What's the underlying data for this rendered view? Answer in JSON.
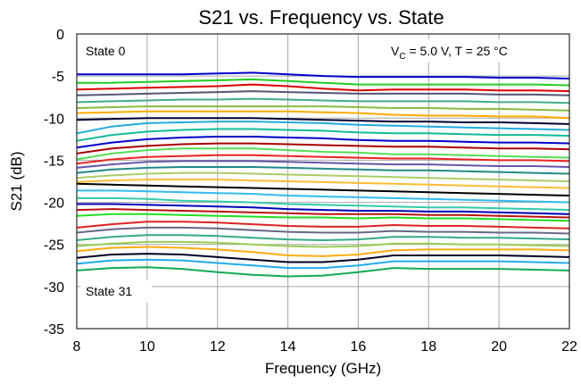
{
  "chart_data": {
    "type": "line",
    "title": "S21 vs. Frequency vs. State",
    "xlabel": "Frequency (GHz)",
    "ylabel": "S21 (dB)",
    "xlim": [
      8,
      22
    ],
    "ylim": [
      -35,
      0
    ],
    "xticks": [
      "8",
      "10",
      "12",
      "14",
      "16",
      "18",
      "20",
      "22"
    ],
    "yticks": [
      "0",
      "-5",
      "-10",
      "-15",
      "-20",
      "-25",
      "-30",
      "-35"
    ],
    "grid": true,
    "annotations": {
      "top_left": "State 0",
      "bottom_left": "State 31",
      "conditions_pre": "V",
      "conditions_sub": "C",
      "conditions_post": " = 5.0 V, T = 25 °C"
    },
    "x": [
      8,
      9,
      10,
      11,
      12,
      13,
      14,
      15,
      16,
      17,
      18,
      19,
      20,
      21,
      22
    ],
    "series": [
      {
        "color": "#0000cc",
        "values": [
          -4.8,
          -4.8,
          -4.8,
          -4.8,
          -4.7,
          -4.6,
          -4.8,
          -5.0,
          -5.1,
          -5.1,
          -5.1,
          -5.1,
          -5.2,
          -5.2,
          -5.3
        ]
      },
      {
        "color": "#22cc22",
        "values": [
          -5.8,
          -5.8,
          -5.7,
          -5.6,
          -5.5,
          -5.4,
          -5.6,
          -5.8,
          -6.0,
          -6.0,
          -6.0,
          -6.0,
          -6.0,
          -6.0,
          -6.1
        ]
      },
      {
        "color": "#dd0000",
        "values": [
          -6.6,
          -6.5,
          -6.4,
          -6.3,
          -6.2,
          -6.0,
          -6.2,
          -6.5,
          -6.7,
          -6.6,
          -6.6,
          -6.6,
          -6.7,
          -6.7,
          -6.8
        ]
      },
      {
        "color": "#555577",
        "values": [
          -7.3,
          -7.2,
          -7.1,
          -7.0,
          -6.9,
          -6.8,
          -6.9,
          -7.0,
          -7.1,
          -7.1,
          -7.1,
          -7.1,
          -7.2,
          -7.2,
          -7.3
        ]
      },
      {
        "color": "#44aa88",
        "values": [
          -8.1,
          -8.0,
          -7.9,
          -7.8,
          -7.8,
          -7.7,
          -7.8,
          -7.9,
          -8.0,
          -8.0,
          -8.0,
          -8.0,
          -8.1,
          -8.1,
          -8.2
        ]
      },
      {
        "color": "#88bb44",
        "values": [
          -8.8,
          -8.7,
          -8.6,
          -8.6,
          -8.6,
          -8.6,
          -8.6,
          -8.6,
          -8.7,
          -8.8,
          -8.8,
          -8.9,
          -8.9,
          -9.0,
          -9.1
        ]
      },
      {
        "color": "#ffaa00",
        "values": [
          -9.4,
          -9.3,
          -9.2,
          -9.2,
          -9.2,
          -9.2,
          -9.2,
          -9.3,
          -9.4,
          -9.6,
          -9.7,
          -9.7,
          -9.8,
          -9.8,
          -10.0
        ]
      },
      {
        "color": "#000033",
        "values": [
          -10.2,
          -10.1,
          -10.0,
          -10.0,
          -10.0,
          -10.0,
          -10.1,
          -10.2,
          -10.3,
          -10.4,
          -10.4,
          -10.5,
          -10.5,
          -10.6,
          -10.7
        ]
      },
      {
        "color": "#22aadd",
        "values": [
          -11.8,
          -11.0,
          -10.6,
          -10.5,
          -10.4,
          -10.4,
          -10.5,
          -10.6,
          -10.8,
          -10.9,
          -11.0,
          -11.1,
          -11.2,
          -11.3,
          -11.4
        ]
      },
      {
        "color": "#11bb99",
        "values": [
          -12.7,
          -12.0,
          -11.6,
          -11.4,
          -11.3,
          -11.3,
          -11.4,
          -11.5,
          -11.7,
          -11.8,
          -11.8,
          -11.9,
          -12.0,
          -12.0,
          -12.1
        ]
      },
      {
        "color": "#0000cc",
        "values": [
          -13.5,
          -12.9,
          -12.5,
          -12.3,
          -12.2,
          -12.2,
          -12.3,
          -12.4,
          -12.6,
          -12.7,
          -12.7,
          -12.8,
          -12.9,
          -12.9,
          -13.0
        ]
      },
      {
        "color": "#aa0000",
        "values": [
          -14.2,
          -13.6,
          -13.3,
          -13.1,
          -13.0,
          -13.0,
          -13.1,
          -13.2,
          -13.3,
          -13.4,
          -13.4,
          -13.5,
          -13.6,
          -13.6,
          -13.7
        ]
      },
      {
        "color": "#55dd55",
        "values": [
          -14.9,
          -14.2,
          -13.8,
          -13.6,
          -13.6,
          -13.6,
          -13.8,
          -14.0,
          -14.1,
          -14.3,
          -14.3,
          -14.4,
          -14.5,
          -14.6,
          -14.7
        ]
      },
      {
        "color": "#ee2222",
        "values": [
          -15.4,
          -14.9,
          -14.6,
          -14.5,
          -14.4,
          -14.4,
          -14.5,
          -14.6,
          -14.7,
          -14.8,
          -14.8,
          -14.9,
          -15.0,
          -15.0,
          -15.1
        ]
      },
      {
        "color": "#6655aa",
        "values": [
          -15.9,
          -15.5,
          -15.2,
          -15.1,
          -15.1,
          -15.1,
          -15.2,
          -15.3,
          -15.4,
          -15.5,
          -15.5,
          -15.6,
          -15.7,
          -15.7,
          -15.8
        ]
      },
      {
        "color": "#228888",
        "values": [
          -16.5,
          -16.1,
          -15.9,
          -15.8,
          -15.8,
          -15.8,
          -15.9,
          -16.0,
          -16.1,
          -16.2,
          -16.2,
          -16.3,
          -16.4,
          -16.5,
          -16.6
        ]
      },
      {
        "color": "#aacc66",
        "values": [
          -17.1,
          -16.8,
          -16.6,
          -16.5,
          -16.5,
          -16.6,
          -16.7,
          -16.8,
          -16.9,
          -17.0,
          -17.1,
          -17.2,
          -17.3,
          -17.4,
          -17.5
        ]
      },
      {
        "color": "#ffbb33",
        "values": [
          -17.6,
          -17.4,
          -17.3,
          -17.3,
          -17.3,
          -17.4,
          -17.5,
          -17.6,
          -17.7,
          -17.8,
          -17.9,
          -18.0,
          -18.1,
          -18.2,
          -18.3
        ]
      },
      {
        "color": "#000000",
        "values": [
          -17.8,
          -17.9,
          -18.0,
          -18.1,
          -18.2,
          -18.3,
          -18.4,
          -18.5,
          -18.6,
          -18.7,
          -18.8,
          -18.9,
          -19.0,
          -19.1,
          -19.2
        ]
      },
      {
        "color": "#33bbee",
        "values": [
          -18.6,
          -18.6,
          -18.7,
          -18.8,
          -18.9,
          -19.0,
          -19.2,
          -19.3,
          -19.4,
          -19.5,
          -19.6,
          -19.7,
          -19.8,
          -19.9,
          -20.0
        ]
      },
      {
        "color": "#33ccaa",
        "values": [
          -19.5,
          -19.5,
          -19.6,
          -19.8,
          -19.9,
          -20.0,
          -20.2,
          -20.3,
          -20.4,
          -20.5,
          -20.6,
          -20.6,
          -20.7,
          -20.8,
          -20.9
        ]
      },
      {
        "color": "#0000bb",
        "values": [
          -20.2,
          -20.2,
          -20.3,
          -20.4,
          -20.5,
          -20.6,
          -20.8,
          -20.9,
          -21.0,
          -21.0,
          -21.1,
          -21.1,
          -21.2,
          -21.3,
          -21.4
        ]
      },
      {
        "color": "#bb1111",
        "values": [
          -20.9,
          -20.8,
          -20.9,
          -21.0,
          -21.1,
          -21.2,
          -21.3,
          -21.4,
          -21.4,
          -21.4,
          -21.5,
          -21.5,
          -21.6,
          -21.7,
          -21.8
        ]
      },
      {
        "color": "#22dd22",
        "values": [
          -21.6,
          -21.4,
          -21.4,
          -21.5,
          -21.6,
          -21.7,
          -21.8,
          -21.8,
          -21.9,
          -21.8,
          -21.9,
          -21.9,
          -22.0,
          -22.1,
          -22.2
        ]
      },
      {
        "color": "#dd2222",
        "values": [
          -23.0,
          -22.6,
          -22.3,
          -22.3,
          -22.4,
          -22.6,
          -22.8,
          -22.9,
          -22.9,
          -22.7,
          -22.8,
          -22.8,
          -22.9,
          -23.0,
          -23.1
        ]
      },
      {
        "color": "#666688",
        "values": [
          -23.6,
          -23.2,
          -23.0,
          -23.0,
          -23.1,
          -23.3,
          -23.5,
          -23.6,
          -23.6,
          -23.4,
          -23.5,
          -23.5,
          -23.6,
          -23.6,
          -23.7
        ]
      },
      {
        "color": "#33aa88",
        "values": [
          -24.5,
          -24.1,
          -23.9,
          -23.9,
          -24.0,
          -24.2,
          -24.4,
          -24.5,
          -24.4,
          -24.1,
          -24.1,
          -24.2,
          -24.2,
          -24.3,
          -24.4
        ]
      },
      {
        "color": "#99cc55",
        "values": [
          -25.2,
          -24.9,
          -24.7,
          -24.7,
          -24.8,
          -25.0,
          -25.2,
          -25.3,
          -25.2,
          -24.9,
          -24.9,
          -25.0,
          -25.0,
          -25.1,
          -25.2
        ]
      },
      {
        "color": "#ffaa11",
        "values": [
          -25.8,
          -25.4,
          -25.3,
          -25.4,
          -25.6,
          -25.9,
          -26.3,
          -26.4,
          -26.2,
          -25.7,
          -25.6,
          -25.6,
          -25.6,
          -25.6,
          -25.7
        ]
      },
      {
        "color": "#000022",
        "values": [
          -26.6,
          -26.2,
          -26.1,
          -26.2,
          -26.5,
          -26.8,
          -27.1,
          -27.1,
          -26.8,
          -26.3,
          -26.3,
          -26.3,
          -26.3,
          -26.4,
          -26.5
        ]
      },
      {
        "color": "#22aaee",
        "values": [
          -27.3,
          -26.9,
          -26.8,
          -26.9,
          -27.2,
          -27.5,
          -27.8,
          -27.8,
          -27.5,
          -27.0,
          -27.0,
          -27.0,
          -27.0,
          -27.1,
          -27.2
        ]
      },
      {
        "color": "#11aa55",
        "values": [
          -28.1,
          -27.8,
          -27.7,
          -27.9,
          -28.3,
          -28.6,
          -28.8,
          -28.7,
          -28.3,
          -27.8,
          -27.9,
          -27.9,
          -27.9,
          -28.0,
          -28.1
        ]
      }
    ]
  }
}
